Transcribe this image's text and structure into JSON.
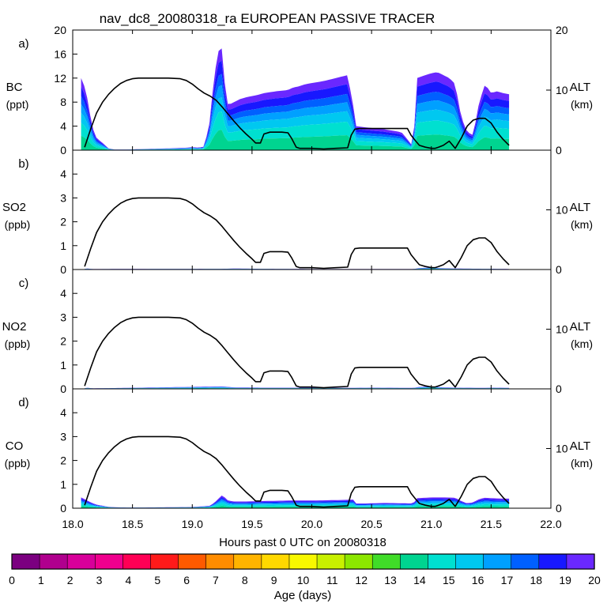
{
  "chart_data": {
    "type": "area",
    "title": "nav_dc8_20080318_ra EUROPEAN PASSIVE TRACER",
    "xlabel": "Hours past 0 UTC on 20080318",
    "xlim": [
      18.0,
      22.0
    ],
    "xticks": [
      "18.0",
      "18.5",
      "19.0",
      "19.5",
      "20.0",
      "20.5",
      "21.0",
      "21.5",
      "22.0"
    ],
    "colorbar": {
      "label": "Age (days)",
      "ticks": [
        "0",
        "1",
        "2",
        "3",
        "4",
        "5",
        "6",
        "7",
        "8",
        "9",
        "10",
        "11",
        "12",
        "13",
        "14",
        "15",
        "16",
        "17",
        "18",
        "19",
        "20"
      ],
      "colors": [
        "#7b0080",
        "#b0008e",
        "#d8009a",
        "#f0008e",
        "#ff0055",
        "#ff1a1a",
        "#ff5a00",
        "#ff8c00",
        "#ffb400",
        "#ffd800",
        "#f8f800",
        "#c8f000",
        "#8ce600",
        "#40dc28",
        "#00d490",
        "#00e0d0",
        "#00c8f0",
        "#00a0ff",
        "#0060ff",
        "#1818ff",
        "#6a28ff"
      ]
    },
    "altitude": {
      "label": "ALT",
      "unit": "(km)",
      "ylim": [
        0,
        20
      ],
      "x": [
        18.1,
        18.15,
        18.2,
        18.25,
        18.3,
        18.35,
        18.4,
        18.45,
        18.5,
        18.55,
        18.6,
        18.7,
        18.8,
        18.9,
        18.95,
        19.0,
        19.05,
        19.1,
        19.15,
        19.2,
        19.25,
        19.3,
        19.35,
        19.4,
        19.45,
        19.5,
        19.53,
        19.57,
        19.6,
        19.65,
        19.7,
        19.75,
        19.8,
        19.83,
        19.87,
        19.9,
        20.0,
        20.1,
        20.2,
        20.3,
        20.33,
        20.36,
        20.4,
        20.5,
        20.6,
        20.7,
        20.8,
        20.83,
        20.87,
        20.9,
        20.95,
        21.0,
        21.03,
        21.06,
        21.1,
        21.15,
        21.2,
        21.25,
        21.3,
        21.35,
        21.4,
        21.45,
        21.5,
        21.55,
        21.6,
        21.65
      ],
      "values": [
        0.5,
        3.5,
        6.2,
        8.0,
        9.3,
        10.3,
        11.1,
        11.6,
        11.9,
        12.0,
        12.0,
        12.0,
        12.0,
        11.9,
        11.6,
        11.0,
        10.2,
        9.5,
        9.0,
        8.3,
        7.2,
        6.0,
        4.8,
        3.7,
        2.7,
        1.8,
        1.2,
        1.2,
        2.7,
        3.0,
        3.0,
        3.0,
        2.9,
        2.0,
        0.5,
        0.3,
        0.3,
        0.2,
        0.3,
        0.4,
        2.5,
        3.5,
        3.6,
        3.6,
        3.6,
        3.6,
        3.6,
        2.5,
        1.5,
        0.8,
        0.5,
        0.3,
        0.3,
        0.5,
        0.8,
        1.5,
        0.3,
        2.0,
        4.0,
        5.0,
        5.3,
        5.3,
        4.5,
        3.0,
        1.8,
        0.8
      ]
    },
    "panels": [
      {
        "letter": "a)",
        "species": "BC",
        "unit": "(ppt)",
        "ylim": [
          0,
          20
        ],
        "yticks": [
          "0",
          "4",
          "8",
          "12",
          "16",
          "20"
        ],
        "alt_ticks": [
          "0",
          "10",
          "20"
        ],
        "x": [
          18.07,
          18.1,
          18.13,
          18.16,
          18.2,
          18.25,
          18.3,
          18.35,
          18.45,
          18.6,
          18.8,
          18.95,
          19.0,
          19.05,
          19.1,
          19.15,
          19.18,
          19.22,
          19.25,
          19.28,
          19.3,
          19.35,
          19.4,
          19.45,
          19.5,
          19.55,
          19.6,
          19.7,
          19.8,
          19.85,
          19.87,
          19.95,
          20.1,
          20.2,
          20.3,
          20.35,
          20.37,
          20.45,
          20.6,
          20.75,
          20.8,
          20.85,
          20.87,
          20.88,
          20.95,
          21.0,
          21.05,
          21.1,
          21.15,
          21.2,
          21.25,
          21.3,
          21.35,
          21.4,
          21.45,
          21.5,
          21.55,
          21.6,
          21.65
        ],
        "values": [
          12.0,
          10.5,
          8.0,
          4.0,
          2.0,
          1.2,
          0.3,
          0.1,
          0.1,
          0.2,
          0.3,
          0.4,
          0.5,
          0.4,
          0.6,
          5.0,
          12.0,
          16.5,
          17.0,
          9.0,
          7.5,
          8.0,
          8.5,
          8.8,
          9.0,
          9.2,
          9.5,
          9.8,
          10.0,
          10.5,
          10.5,
          11.0,
          11.5,
          12.0,
          12.5,
          7.0,
          4.0,
          3.8,
          3.5,
          3.0,
          1.8,
          0.5,
          10.0,
          12.0,
          12.5,
          12.8,
          13.0,
          12.5,
          12.0,
          11.0,
          5.5,
          3.0,
          2.5,
          8.0,
          11.0,
          9.5,
          9.8,
          9.5,
          9.3
        ]
      },
      {
        "letter": "b)",
        "species": "SO2",
        "unit": "(ppb)",
        "ylim": [
          0,
          5
        ],
        "yticks": [
          "0",
          "1",
          "2",
          "3",
          "4"
        ],
        "alt_ticks": [
          "0",
          "10"
        ],
        "x": [
          18.1,
          18.13,
          18.16,
          19.25,
          19.35,
          19.6,
          20.0,
          20.3,
          20.5,
          20.85,
          20.9,
          21.0,
          21.1,
          21.2,
          21.45,
          21.5,
          21.65
        ],
        "values": [
          0.03,
          0.04,
          0.02,
          0.03,
          0.04,
          0.03,
          0.02,
          0.02,
          0.02,
          0.02,
          0.06,
          0.08,
          0.05,
          0.04,
          0.03,
          0.03,
          0.02
        ]
      },
      {
        "letter": "c)",
        "species": "NO2",
        "unit": "(ppb)",
        "ylim": [
          0,
          5
        ],
        "yticks": [
          "0",
          "1",
          "2",
          "3",
          "4"
        ],
        "alt_ticks": [
          "0",
          "10"
        ],
        "x": [
          18.1,
          18.13,
          18.16,
          19.25,
          19.35,
          19.6,
          20.0,
          20.3,
          20.5,
          20.85,
          20.9,
          21.0,
          21.1,
          21.2,
          21.45,
          21.5,
          21.65
        ],
        "values": [
          0.03,
          0.05,
          0.02,
          0.1,
          0.06,
          0.05,
          0.05,
          0.04,
          0.05,
          0.04,
          0.08,
          0.1,
          0.06,
          0.05,
          0.04,
          0.05,
          0.04
        ]
      },
      {
        "letter": "d)",
        "species": "CO",
        "unit": "(ppb)",
        "ylim": [
          0,
          5
        ],
        "yticks": [
          "0",
          "1",
          "2",
          "3",
          "4"
        ],
        "alt_ticks": [
          "0",
          "10"
        ],
        "x": [
          18.07,
          18.1,
          18.13,
          18.16,
          18.2,
          18.25,
          18.3,
          18.35,
          18.45,
          18.6,
          18.8,
          19.0,
          19.15,
          19.2,
          19.25,
          19.3,
          19.35,
          19.45,
          19.6,
          19.8,
          20.0,
          20.2,
          20.35,
          20.37,
          20.45,
          20.6,
          20.85,
          20.88,
          21.0,
          21.1,
          21.2,
          21.25,
          21.3,
          21.35,
          21.4,
          21.45,
          21.5,
          21.6,
          21.65
        ],
        "values": [
          0.45,
          0.38,
          0.3,
          0.22,
          0.15,
          0.1,
          0.06,
          0.04,
          0.03,
          0.03,
          0.04,
          0.05,
          0.1,
          0.3,
          0.55,
          0.32,
          0.28,
          0.28,
          0.3,
          0.32,
          0.32,
          0.34,
          0.36,
          0.2,
          0.2,
          0.22,
          0.2,
          0.42,
          0.45,
          0.45,
          0.44,
          0.3,
          0.2,
          0.25,
          0.38,
          0.44,
          0.42,
          0.4,
          0.4
        ]
      }
    ]
  }
}
